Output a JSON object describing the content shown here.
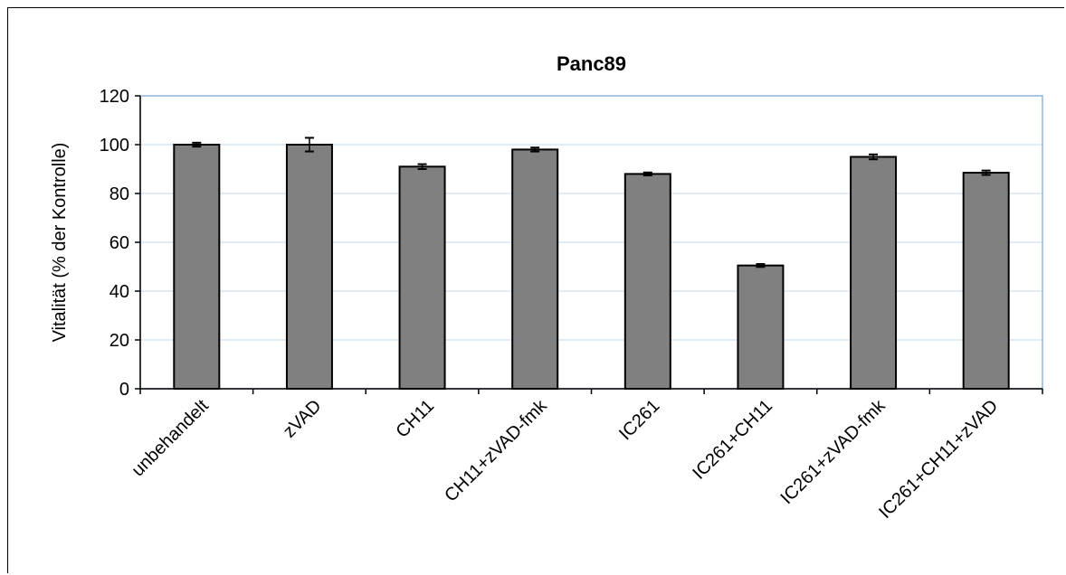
{
  "chart_data": {
    "type": "bar",
    "title": "Panc89",
    "xlabel": "",
    "ylabel": "Vitalität (% der Kontrolle)",
    "ylim": [
      0,
      120
    ],
    "yticks": [
      0,
      20,
      40,
      60,
      80,
      100,
      120
    ],
    "grid": true,
    "categories": [
      "unbehandelt",
      "zVAD",
      "CH11",
      "CH11+zVAD-fmk",
      "IC261",
      "IC261+CH11",
      "IC261+zVAD-fmk",
      "IC261+CH11+zVAD"
    ],
    "values": [
      100,
      100,
      91,
      98,
      88,
      50.5,
      95,
      88.5
    ],
    "errors": [
      0.8,
      2.8,
      1.0,
      0.8,
      0.6,
      0.6,
      1.0,
      0.9
    ],
    "colors": {
      "bar": "#808080",
      "bar_edge": "#000000",
      "plot_border": "#8eb4e3",
      "grid": "#c6d9f1"
    }
  }
}
